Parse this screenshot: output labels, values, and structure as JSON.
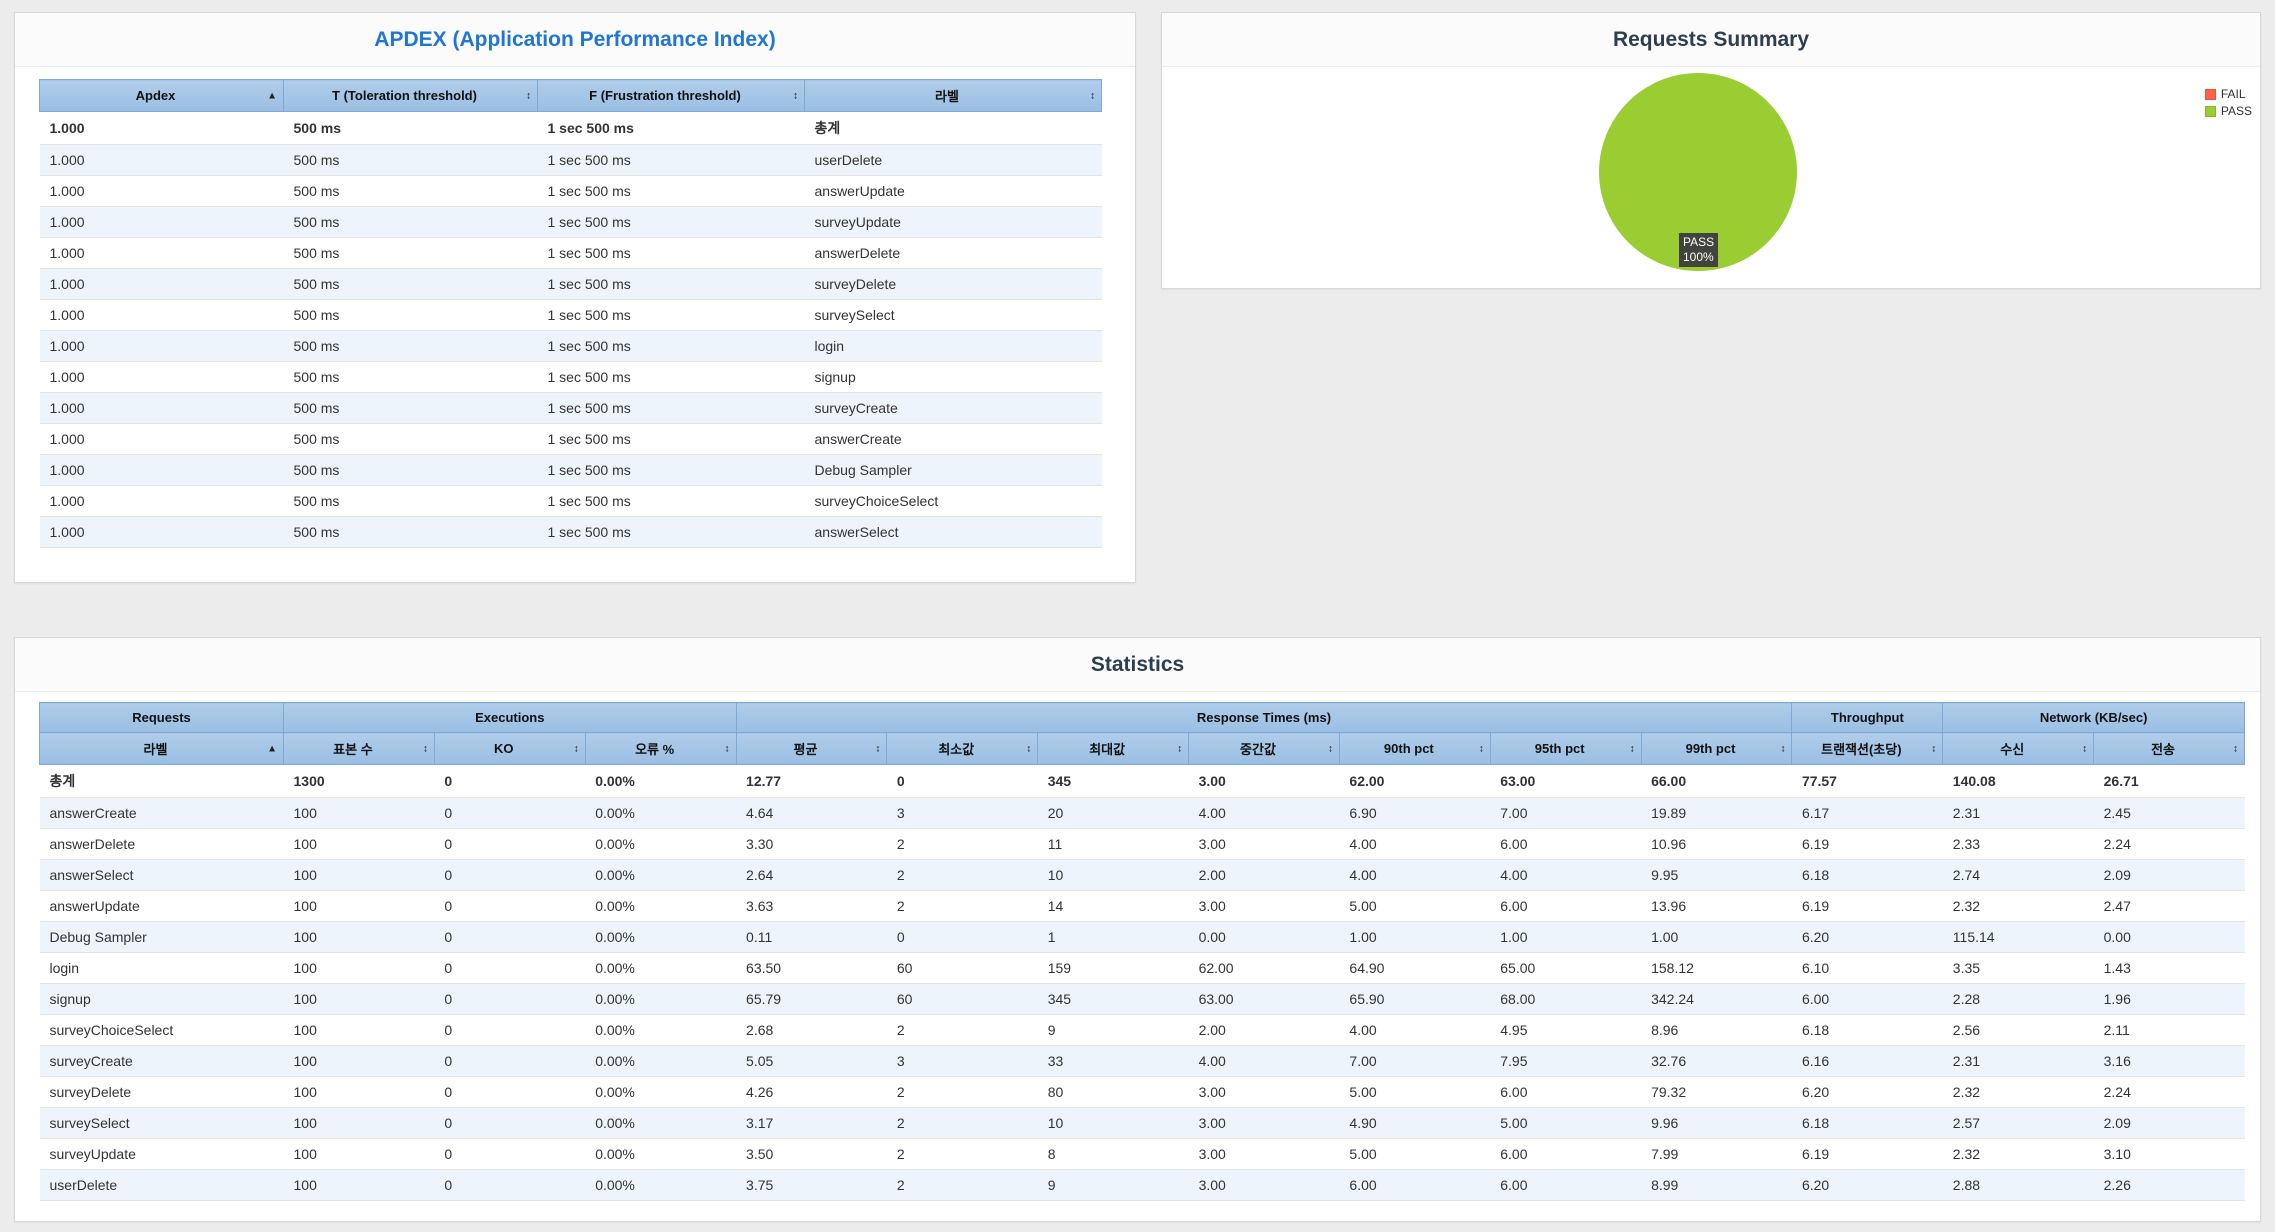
{
  "apdex_panel": {
    "title": "APDEX (Application Performance Index)",
    "columns": [
      "Apdex",
      "T (Toleration threshold)",
      "F (Frustration threshold)",
      "라벨"
    ],
    "sort_states": [
      "asc",
      "none",
      "none",
      "none"
    ],
    "rows": [
      [
        "1.000",
        "500 ms",
        "1 sec 500 ms",
        "총계"
      ],
      [
        "1.000",
        "500 ms",
        "1 sec 500 ms",
        "userDelete"
      ],
      [
        "1.000",
        "500 ms",
        "1 sec 500 ms",
        "answerUpdate"
      ],
      [
        "1.000",
        "500 ms",
        "1 sec 500 ms",
        "surveyUpdate"
      ],
      [
        "1.000",
        "500 ms",
        "1 sec 500 ms",
        "answerDelete"
      ],
      [
        "1.000",
        "500 ms",
        "1 sec 500 ms",
        "surveyDelete"
      ],
      [
        "1.000",
        "500 ms",
        "1 sec 500 ms",
        "surveySelect"
      ],
      [
        "1.000",
        "500 ms",
        "1 sec 500 ms",
        "login"
      ],
      [
        "1.000",
        "500 ms",
        "1 sec 500 ms",
        "signup"
      ],
      [
        "1.000",
        "500 ms",
        "1 sec 500 ms",
        "surveyCreate"
      ],
      [
        "1.000",
        "500 ms",
        "1 sec 500 ms",
        "answerCreate"
      ],
      [
        "1.000",
        "500 ms",
        "1 sec 500 ms",
        "Debug Sampler"
      ],
      [
        "1.000",
        "500 ms",
        "1 sec 500 ms",
        "surveyChoiceSelect"
      ],
      [
        "1.000",
        "500 ms",
        "1 sec 500 ms",
        "answerSelect"
      ]
    ]
  },
  "requests_summary": {
    "title": "Requests Summary",
    "legend": [
      {
        "label": "FAIL",
        "color": "#ff6347"
      },
      {
        "label": "PASS",
        "color": "#9acd32"
      }
    ],
    "pie_color": "#9acd32",
    "label_lines": [
      "PASS",
      "100%"
    ]
  },
  "chart_data": {
    "type": "pie",
    "title": "Requests Summary",
    "slices": [
      {
        "label": "PASS",
        "value": 100,
        "color": "#9acd32"
      },
      {
        "label": "FAIL",
        "value": 0,
        "color": "#ff6347"
      }
    ],
    "legend_position": "top-right",
    "annotation": "PASS 100%"
  },
  "statistics": {
    "title": "Statistics",
    "header_groups": [
      {
        "label": "Requests",
        "span": 1
      },
      {
        "label": "Executions",
        "span": 3
      },
      {
        "label": "Response Times (ms)",
        "span": 7
      },
      {
        "label": "Throughput",
        "span": 1
      },
      {
        "label": "Network (KB/sec)",
        "span": 2
      }
    ],
    "columns": [
      "라벨",
      "표본 수",
      "KO",
      "오류 %",
      "평균",
      "최소값",
      "최대값",
      "중간값",
      "90th pct",
      "95th pct",
      "99th pct",
      "트랜잭션(초당)",
      "수신",
      "전송"
    ],
    "sort_states": [
      "asc",
      "none",
      "none",
      "none",
      "none",
      "none",
      "none",
      "none",
      "none",
      "none",
      "none",
      "none",
      "none",
      "none"
    ],
    "rows": [
      [
        "총계",
        "1300",
        "0",
        "0.00%",
        "12.77",
        "0",
        "345",
        "3.00",
        "62.00",
        "63.00",
        "66.00",
        "77.57",
        "140.08",
        "26.71"
      ],
      [
        "answerCreate",
        "100",
        "0",
        "0.00%",
        "4.64",
        "3",
        "20",
        "4.00",
        "6.90",
        "7.00",
        "19.89",
        "6.17",
        "2.31",
        "2.45"
      ],
      [
        "answerDelete",
        "100",
        "0",
        "0.00%",
        "3.30",
        "2",
        "11",
        "3.00",
        "4.00",
        "6.00",
        "10.96",
        "6.19",
        "2.33",
        "2.24"
      ],
      [
        "answerSelect",
        "100",
        "0",
        "0.00%",
        "2.64",
        "2",
        "10",
        "2.00",
        "4.00",
        "4.00",
        "9.95",
        "6.18",
        "2.74",
        "2.09"
      ],
      [
        "answerUpdate",
        "100",
        "0",
        "0.00%",
        "3.63",
        "2",
        "14",
        "3.00",
        "5.00",
        "6.00",
        "13.96",
        "6.19",
        "2.32",
        "2.47"
      ],
      [
        "Debug Sampler",
        "100",
        "0",
        "0.00%",
        "0.11",
        "0",
        "1",
        "0.00",
        "1.00",
        "1.00",
        "1.00",
        "6.20",
        "115.14",
        "0.00"
      ],
      [
        "login",
        "100",
        "0",
        "0.00%",
        "63.50",
        "60",
        "159",
        "62.00",
        "64.90",
        "65.00",
        "158.12",
        "6.10",
        "3.35",
        "1.43"
      ],
      [
        "signup",
        "100",
        "0",
        "0.00%",
        "65.79",
        "60",
        "345",
        "63.00",
        "65.90",
        "68.00",
        "342.24",
        "6.00",
        "2.28",
        "1.96"
      ],
      [
        "surveyChoiceSelect",
        "100",
        "0",
        "0.00%",
        "2.68",
        "2",
        "9",
        "2.00",
        "4.00",
        "4.95",
        "8.96",
        "6.18",
        "2.56",
        "2.11"
      ],
      [
        "surveyCreate",
        "100",
        "0",
        "0.00%",
        "5.05",
        "3",
        "33",
        "4.00",
        "7.00",
        "7.95",
        "32.76",
        "6.16",
        "2.31",
        "3.16"
      ],
      [
        "surveyDelete",
        "100",
        "0",
        "0.00%",
        "4.26",
        "2",
        "80",
        "3.00",
        "5.00",
        "6.00",
        "79.32",
        "6.20",
        "2.32",
        "2.24"
      ],
      [
        "surveySelect",
        "100",
        "0",
        "0.00%",
        "3.17",
        "2",
        "10",
        "3.00",
        "4.90",
        "5.00",
        "9.96",
        "6.18",
        "2.57",
        "2.09"
      ],
      [
        "surveyUpdate",
        "100",
        "0",
        "0.00%",
        "3.50",
        "2",
        "8",
        "3.00",
        "5.00",
        "6.00",
        "7.99",
        "6.19",
        "2.32",
        "3.10"
      ],
      [
        "userDelete",
        "100",
        "0",
        "0.00%",
        "3.75",
        "2",
        "9",
        "3.00",
        "6.00",
        "6.00",
        "8.99",
        "6.20",
        "2.88",
        "2.26"
      ]
    ]
  }
}
